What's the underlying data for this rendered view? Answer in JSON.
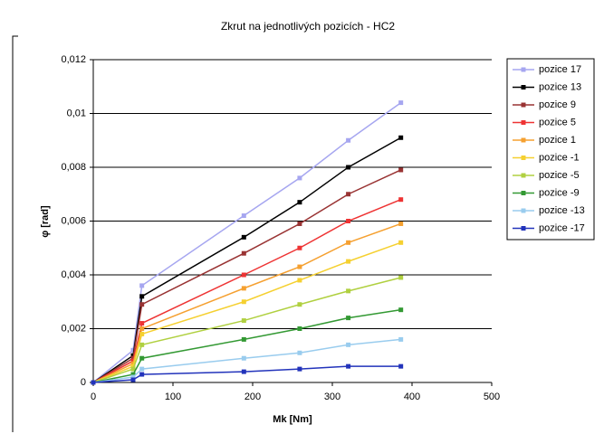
{
  "chart_data": {
    "type": "line",
    "title": "Zkrut na jednotlivých pozicích - HC2",
    "x_label": "Mk [Nm]",
    "y_label": "φ [rad]",
    "x": [
      0,
      50,
      61,
      189,
      259,
      320,
      386
    ],
    "xlim": [
      0,
      500
    ],
    "xticks": [
      0,
      100,
      200,
      300,
      400,
      500
    ],
    "ylim": [
      0,
      0.012
    ],
    "yticks": [
      0,
      {
        "value": 0.002,
        "label": "0,002"
      },
      {
        "value": 0.004,
        "label": "0,004"
      },
      {
        "value": 0.006,
        "label": "0,006"
      },
      {
        "value": 0.008,
        "label": "0,008"
      },
      {
        "value": 0.01,
        "label": "0,01"
      },
      {
        "value": 0.012,
        "label": "0,012"
      }
    ],
    "grid": true,
    "legend": "right",
    "series": [
      {
        "name": "pozice 17",
        "color": "#a6a6f0",
        "values": [
          0,
          0.0012,
          0.0036,
          0.0062,
          0.0076,
          0.009,
          0.0104
        ]
      },
      {
        "name": "pozice 13",
        "color": "#000000",
        "values": [
          0,
          0.001,
          0.0032,
          0.0054,
          0.0067,
          0.008,
          0.0091
        ]
      },
      {
        "name": "pozice 9",
        "color": "#993333",
        "values": [
          0,
          0.0009,
          0.0029,
          0.0048,
          0.0059,
          0.007,
          0.0079
        ]
      },
      {
        "name": "pozice 5",
        "color": "#ee3333",
        "values": [
          0,
          0.0008,
          0.0022,
          0.004,
          0.005,
          0.006,
          0.0068
        ]
      },
      {
        "name": "pozice 1",
        "color": "#f5a030",
        "values": [
          0,
          0.0007,
          0.002,
          0.0035,
          0.0043,
          0.0052,
          0.0059
        ]
      },
      {
        "name": "pozice -1",
        "color": "#f5d030",
        "values": [
          0,
          0.0006,
          0.0018,
          0.003,
          0.0038,
          0.0045,
          0.0052
        ]
      },
      {
        "name": "pozice -5",
        "color": "#b0d040",
        "values": [
          0,
          0.0005,
          0.0014,
          0.0023,
          0.0029,
          0.0034,
          0.0039
        ]
      },
      {
        "name": "pozice -9",
        "color": "#339933",
        "values": [
          0,
          0.0003,
          0.0009,
          0.0016,
          0.002,
          0.0024,
          0.0027
        ]
      },
      {
        "name": "pozice -13",
        "color": "#99ccee",
        "values": [
          0,
          0.0002,
          0.0005,
          0.0009,
          0.0011,
          0.0014,
          0.0016
        ]
      },
      {
        "name": "pozice -17",
        "color": "#2233bb",
        "values": [
          0,
          0.0001,
          0.0003,
          0.0004,
          0.0005,
          0.0006,
          0.0006
        ]
      }
    ]
  }
}
